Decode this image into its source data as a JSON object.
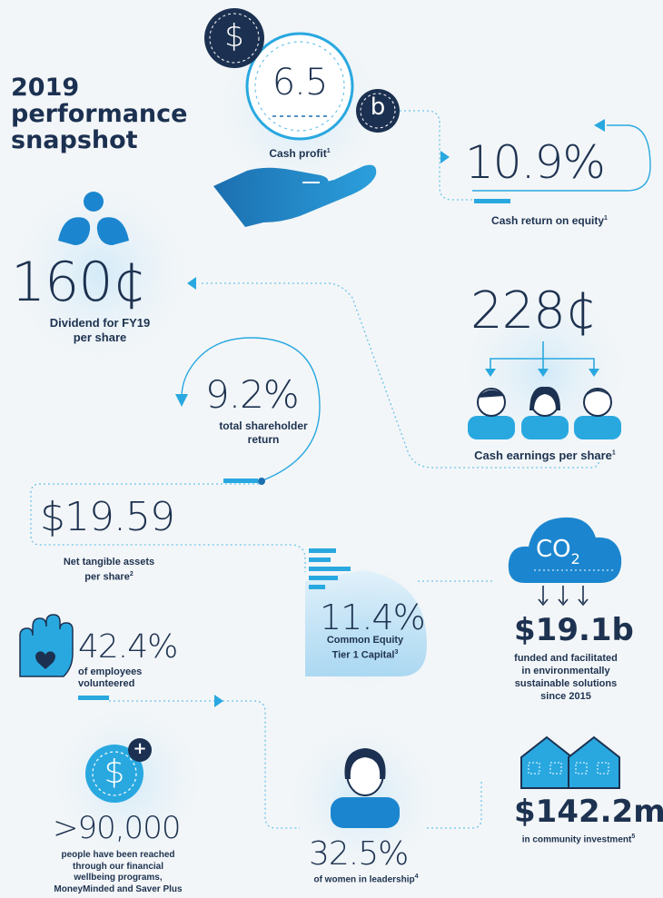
{
  "title": [
    "2019",
    "performance",
    "snapshot"
  ],
  "colors": {
    "navy": "#1c3151",
    "accent": "#29a8e0",
    "light_blue": "#6ac4ec",
    "pale_blue": "#dbeef9"
  },
  "icons": {
    "dollar": "$",
    "billion": "b",
    "plus": "+",
    "co2_main": "CO",
    "co2_sub": "2"
  },
  "cash_profit": {
    "value": "6.5",
    "label": "Cash profit",
    "note": "1"
  },
  "roe": {
    "value": "10.9%",
    "label": "Cash return on equity",
    "note": "1"
  },
  "dividend": {
    "value": "160¢",
    "label_line1": "Dividend for FY19",
    "label_line2": "per share"
  },
  "eps": {
    "value": "228¢",
    "label": "Cash earnings per share",
    "note": "1"
  },
  "tsr": {
    "value": "9.2%",
    "label_line1": "total shareholder",
    "label_line2": "return"
  },
  "nta": {
    "value": "$19.59",
    "label_line1": "Net tangible assets",
    "label_line2": "per share",
    "note": "2"
  },
  "cet1": {
    "value": "11.4%",
    "label_line1": "Common Equity",
    "label_line2": "Tier 1 Capital",
    "note": "3"
  },
  "sustainable": {
    "value": "$19.1b",
    "label_line1": "funded and facilitated",
    "label_line2": "in environmentally",
    "label_line3": "sustainable solutions",
    "label_line4": "since 2015"
  },
  "volunteer": {
    "value": "42.4%",
    "label_line1": "of employees",
    "label_line2": "volunteered"
  },
  "wellbeing": {
    "value": ">90,000",
    "label_line1": "people have been reached",
    "label_line2": "through our financial",
    "label_line3": "wellbeing programs,",
    "label_line4": "MoneyMinded and Saver Plus"
  },
  "women": {
    "value": "32.5%",
    "label": "of women in leadership",
    "note": "4"
  },
  "community": {
    "value": "$142.2m",
    "label": "in community investment",
    "note": "5"
  }
}
